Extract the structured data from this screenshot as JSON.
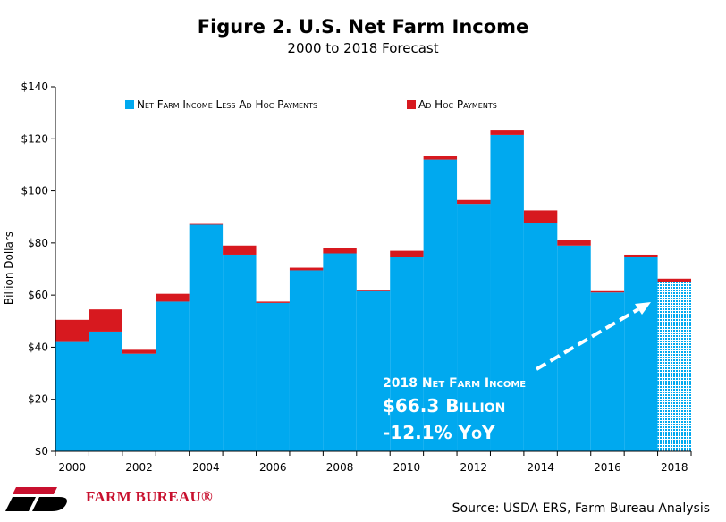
{
  "header": {
    "title": "Figure 2. U.S. Net Farm Income",
    "subtitle": "2000 to 2018 Forecast"
  },
  "footer": {
    "logo_text": "FARM BUREAU®",
    "source": "Source: USDA ERS, Farm Bureau Analysis"
  },
  "annotation": {
    "line1": "2018 Net Farm Income",
    "line2": "$66.3 Billion",
    "line3": "-12.1% YoY"
  },
  "colors": {
    "base": "#00a9ef",
    "adhoc": "#d7191f",
    "forecast_hatch": "#00a9ef",
    "annotation_text": "#ffffff",
    "logo": "#c8102e"
  },
  "chart_data": {
    "type": "bar",
    "stacked": true,
    "forecast_year": "2018",
    "categories": [
      "2000",
      "2001",
      "2002",
      "2003",
      "2004",
      "2005",
      "2006",
      "2007",
      "2008",
      "2009",
      "2010",
      "2011",
      "2012",
      "2013",
      "2014",
      "2015",
      "2016",
      "2017",
      "2018"
    ],
    "series": [
      {
        "name": "Net Farm Income Less Ad Hoc Payments",
        "values": [
          42,
          46,
          37.5,
          57.5,
          87,
          75.5,
          57,
          69.5,
          76,
          61.5,
          74.5,
          112,
          95,
          121.5,
          87.5,
          79,
          61,
          74.5,
          65
        ]
      },
      {
        "name": "Ad Hoc Payments",
        "values": [
          8.5,
          8.5,
          1.5,
          3,
          0.3,
          3.5,
          0.5,
          1,
          2,
          0.5,
          2.5,
          1.5,
          1.5,
          2,
          5,
          2,
          0.5,
          1,
          1.3
        ]
      }
    ],
    "ylabel": "Billion Dollars",
    "xlabel": "",
    "ylim": [
      0,
      140
    ],
    "yticks": [
      0,
      20,
      40,
      60,
      80,
      100,
      120,
      140
    ],
    "ytick_labels": [
      "$0",
      "$20",
      "$40",
      "$60",
      "$80",
      "$100",
      "$120",
      "$140"
    ],
    "xtick_labels": [
      "2000",
      "2002",
      "2004",
      "2006",
      "2008",
      "2010",
      "2012",
      "2014",
      "2016",
      "2018"
    ],
    "legend_position": "top",
    "grid": false
  }
}
